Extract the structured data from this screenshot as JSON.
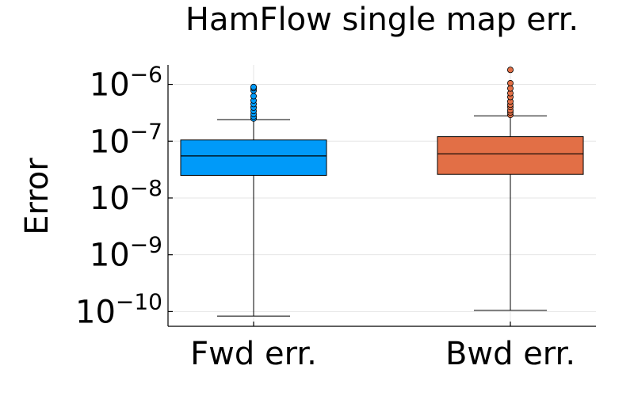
{
  "chart_data": {
    "type": "box",
    "title": "HamFlow single map err.",
    "xlabel": "",
    "ylabel": "Error",
    "yscale": "log10",
    "ylim": [
      5.5e-11,
      2.2e-06
    ],
    "yticks": [
      {
        "value": 1e-10,
        "base": "10",
        "exp": "−10"
      },
      {
        "value": 1e-09,
        "base": "10",
        "exp": "−9"
      },
      {
        "value": 1e-08,
        "base": "10",
        "exp": "−8"
      },
      {
        "value": 1e-07,
        "base": "10",
        "exp": "−7"
      },
      {
        "value": 1e-06,
        "base": "10",
        "exp": "−6"
      }
    ],
    "grid": true,
    "legend": "none",
    "categories": [
      "Fwd err.",
      "Bwd err."
    ],
    "series": [
      {
        "category": "Fwd err.",
        "color": "#009af9",
        "whisker_low": 8.3e-11,
        "q1": 2.5e-08,
        "median": 5.5e-08,
        "q3": 1.05e-07,
        "whisker_high": 2.4e-07,
        "outliers": [
          2.5e-07,
          2.7e-07,
          3e-07,
          3.4e-07,
          3.9e-07,
          4.5e-07,
          5.2e-07,
          6.2e-07,
          7.8e-07,
          8.6e-07,
          9e-07
        ]
      },
      {
        "category": "Bwd err.",
        "color": "#e26f46",
        "whisker_low": 1.05e-10,
        "q1": 2.6e-08,
        "median": 6e-08,
        "q3": 1.2e-07,
        "whisker_high": 2.8e-07,
        "outliers": [
          2.9e-07,
          3.2e-07,
          3.5e-07,
          4e-07,
          4.4e-07,
          5e-07,
          6e-07,
          7e-07,
          8.5e-07,
          1.05e-06,
          1.8e-06
        ]
      }
    ]
  }
}
